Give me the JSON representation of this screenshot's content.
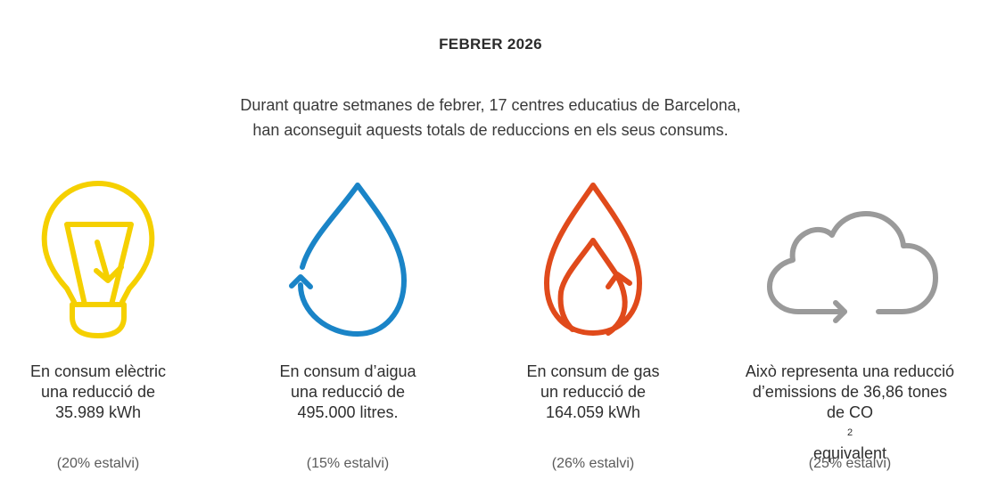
{
  "header": {
    "title": "FEBRER 2026",
    "intro_line1": "Durant quatre setmanes de febrer, 17 centres educatius de Barcelona,",
    "intro_line2": "han aconseguit aquests totals de reduccions en els seus consums."
  },
  "colors": {
    "electric": "#f5d000",
    "water": "#1a84c7",
    "gas": "#e04a1b",
    "emissions": "#9a9a9a"
  },
  "items": [
    {
      "icon": "lightbulb-icon",
      "line1": "En consum elèctric",
      "line2": "una reducció de",
      "line3": "35.989 kWh",
      "saving": "(20% estalvi)"
    },
    {
      "icon": "water-drop-icon",
      "line1": "En consum d’aigua",
      "line2": "una reducció de",
      "line3": "495.000 litres.",
      "saving": "(15% estalvi)"
    },
    {
      "icon": "flame-icon",
      "line1": "En consum de gas",
      "line2": "un reducció de",
      "line3": "164.059 kWh",
      "saving": "(26% estalvi)"
    },
    {
      "icon": "cloud-icon",
      "line1": "Això representa una reducció",
      "line2": "d’emissions de 36,86 tones",
      "line3_pre": "de CO",
      "line3_sub": "2",
      "line3_post": " equivalent",
      "saving": "(25% estalvi)"
    }
  ]
}
